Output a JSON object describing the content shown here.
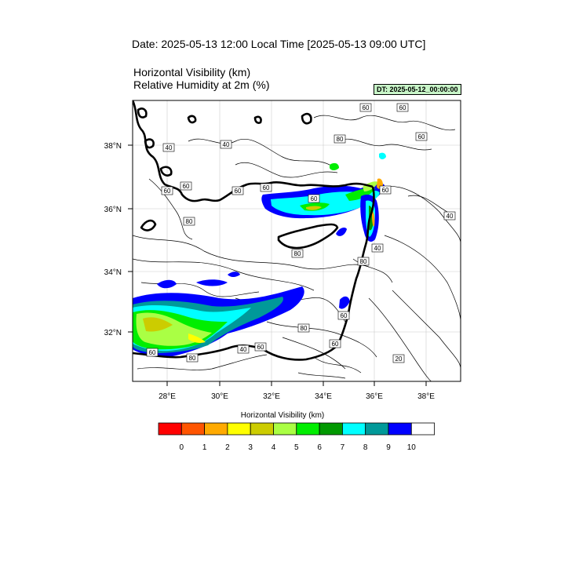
{
  "header": {
    "title": "Date: 2025-05-13  12:00 Local Time [2025-05-13  09:00 UTC]",
    "field1": "Horizontal Visibility   (km)",
    "field2": "Relative Humidity at 2m   (%)",
    "dt_badge": "DT: 2025-05-12_00:00:00"
  },
  "axes": {
    "lon_labels": [
      "28°E",
      "30°E",
      "32°E",
      "34°E",
      "36°E",
      "38°E"
    ],
    "lat_labels": [
      "38°N",
      "36°N",
      "34°N",
      "32°N"
    ]
  },
  "contour_labels": [
    "60",
    "60",
    "60",
    "40",
    "40",
    "80",
    "60",
    "60",
    "60",
    "60",
    "60",
    "40",
    "80",
    "80",
    "60",
    "40",
    "80",
    "60",
    "60",
    "80",
    "40",
    "20",
    "60",
    "60",
    "80"
  ],
  "colorbar": {
    "title": "Horizontal Visibility  (km)",
    "colors": [
      "#ff0000",
      "#ff5500",
      "#ffaa00",
      "#ffff00",
      "#cccc00",
      "#aaff44",
      "#00ee00",
      "#009900",
      "#00ffff",
      "#009999",
      "#0000ff",
      "#ffffff"
    ],
    "tick_labels": [
      "0",
      "1",
      "2",
      "3",
      "4",
      "5",
      "6",
      "7",
      "8",
      "9",
      "10"
    ]
  }
}
